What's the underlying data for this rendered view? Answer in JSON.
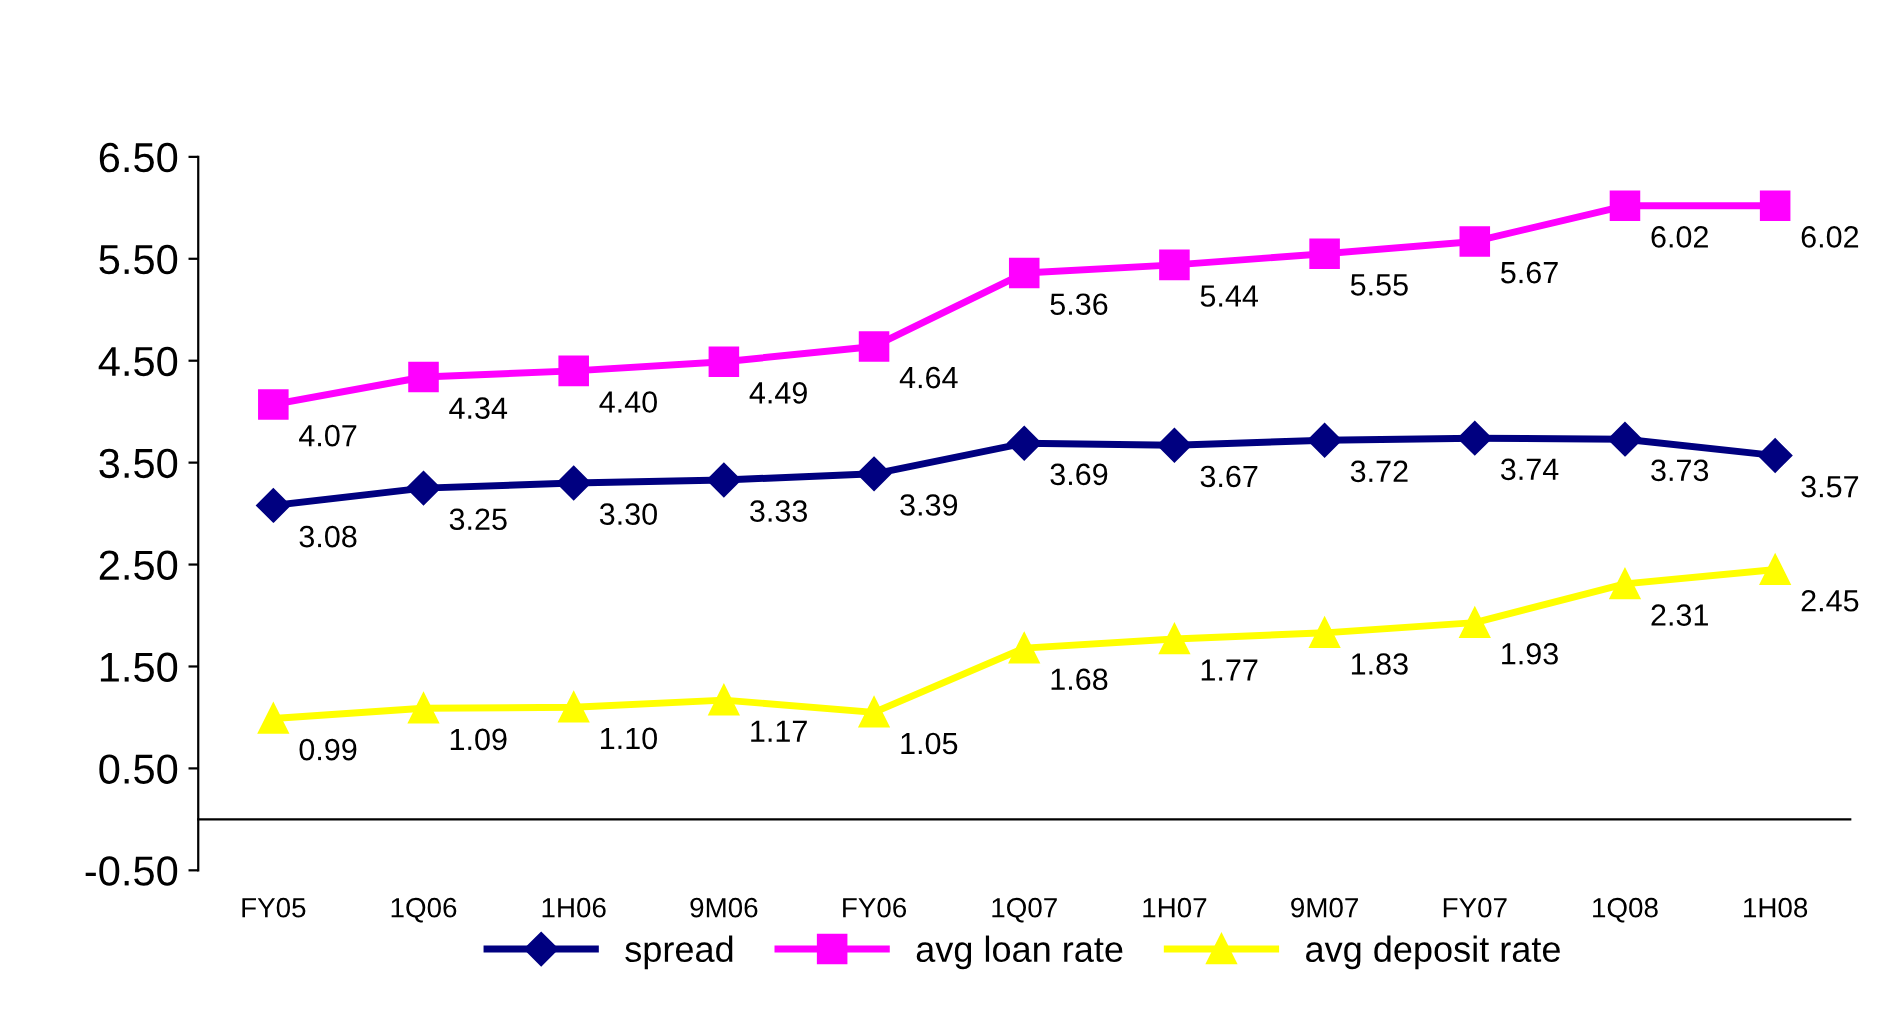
{
  "chart_data": {
    "type": "line",
    "categories": [
      "FY05",
      "1Q06",
      "1H06",
      "9M06",
      "FY06",
      "1Q07",
      "1H07",
      "9M07",
      "FY07",
      "1Q08",
      "1H08"
    ],
    "series": [
      {
        "name": "spread",
        "color": "#000080",
        "marker": "diamond",
        "values": [
          3.08,
          3.25,
          3.3,
          3.33,
          3.39,
          3.69,
          3.67,
          3.72,
          3.74,
          3.73,
          3.57
        ],
        "value_labels": [
          "3.08",
          "3.25",
          "3.30",
          "3.33",
          "3.39",
          "3.69",
          "3.67",
          "3.72",
          "3.74",
          "3.73",
          "3.57"
        ]
      },
      {
        "name": "avg loan rate",
        "color": "#ff00ff",
        "marker": "square",
        "values": [
          4.07,
          4.34,
          4.4,
          4.49,
          4.64,
          5.36,
          5.44,
          5.55,
          5.67,
          6.02,
          6.02
        ],
        "value_labels": [
          "4.07",
          "4.34",
          "4.40",
          "4.49",
          "4.64",
          "5.36",
          "5.44",
          "5.55",
          "5.67",
          "6.02",
          "6.02"
        ]
      },
      {
        "name": "avg deposit rate",
        "color": "#ffff00",
        "marker": "triangle",
        "values": [
          0.99,
          1.09,
          1.1,
          1.17,
          1.05,
          1.68,
          1.77,
          1.83,
          1.93,
          2.31,
          2.45
        ],
        "value_labels": [
          "0.99",
          "1.09",
          "1.10",
          "1.17",
          "1.05",
          "1.68",
          "1.77",
          "1.83",
          "1.93",
          "2.31",
          "2.45"
        ]
      }
    ],
    "ylim": [
      -0.5,
      6.5
    ],
    "yticks": [
      {
        "value": -0.5,
        "label": "-0.50"
      },
      {
        "value": 0.5,
        "label": "0.50"
      },
      {
        "value": 1.5,
        "label": "1.50"
      },
      {
        "value": 2.5,
        "label": "2.50"
      },
      {
        "value": 3.5,
        "label": "3.50"
      },
      {
        "value": 4.5,
        "label": "4.50"
      },
      {
        "value": 5.5,
        "label": "5.50"
      },
      {
        "value": 6.5,
        "label": "6.50"
      }
    ],
    "grid": false,
    "legend": "bottom"
  }
}
